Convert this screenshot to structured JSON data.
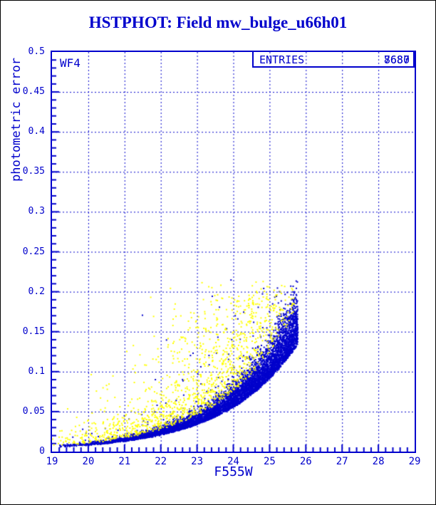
{
  "window": {
    "background": "#FFFFFF",
    "frame_color": "#000000"
  },
  "title": "HSTPHOT: Field mw_bulge_u66h01",
  "colors": {
    "accent": "#0000CC",
    "series_blue": "#0000CC",
    "series_yellow": "#FFFF00",
    "title_text": "#0000CC"
  },
  "plot": {
    "chip_label": "WF4",
    "stats_box": {
      "label": "ENTRIES",
      "values": [
        "7680",
        "8687"
      ]
    }
  },
  "chart_data": {
    "type": "scatter",
    "title": "HSTPHOT: Field mw_bulge_u66h01",
    "xlabel": "F555W",
    "ylabel": "photometric error",
    "xlim": [
      19,
      29
    ],
    "ylim": [
      0,
      0.5
    ],
    "x_ticks": [
      19,
      20,
      21,
      22,
      23,
      24,
      25,
      26,
      27,
      28,
      29
    ],
    "y_ticks": [
      0,
      0.05,
      0.1,
      0.15,
      0.2,
      0.25,
      0.3,
      0.35,
      0.4,
      0.45,
      0.5
    ],
    "x_minor_step": 0.2,
    "y_minor_step": 0.01,
    "grid": "dashed at major ticks",
    "legend_position": "none",
    "annotations": [
      "WF4",
      "ENTRIES 7680 / 8687 (overprinted)"
    ],
    "series": [
      {
        "name": "blue",
        "color": "#0000CC",
        "entries": "7680",
        "description": "dense lower envelope of photometric error rising exponentially with magnitude",
        "envelope_samples": [
          [
            19,
            0.0045
          ],
          [
            20,
            0.0074
          ],
          [
            21,
            0.0122
          ],
          [
            22,
            0.0202
          ],
          [
            23,
            0.0333
          ],
          [
            24,
            0.0549
          ],
          [
            25,
            0.0906
          ],
          [
            25.75,
            0.1318
          ]
        ],
        "max_error": 0.215,
        "x_range": [
          19,
          25.8
        ]
      },
      {
        "name": "yellow",
        "color": "#FFFF00",
        "entries": "8687",
        "description": "sparser points scattered above the blue envelope, largest spread near mag 23-25 up to error 0.2",
        "x_range": [
          19,
          25.7
        ],
        "max_error": 0.21
      }
    ],
    "generation": {
      "seed": 42,
      "envelope": {
        "a": 0.0045,
        "b": 0.5,
        "x0": 19
      },
      "blue": {
        "count": 6500,
        "x_pow": 0.42,
        "x_span": 6.85,
        "x_cutoff": 25.78,
        "band_sigma": 0.25,
        "outlier_frac": 0.025,
        "outlier_mu": 0.25,
        "outlier_sigma": 0.85,
        "cap_base": 0.2,
        "cap_jitter": 0.018
      },
      "yellow": {
        "count": 1700,
        "x_pow": 0.55,
        "x_span": 6.7,
        "x_cutoff": 25.7,
        "mu": 0.3,
        "sigma": 0.85,
        "cap_base": 0.195,
        "cap_jitter": 0.02
      },
      "point_size": 2
    }
  }
}
